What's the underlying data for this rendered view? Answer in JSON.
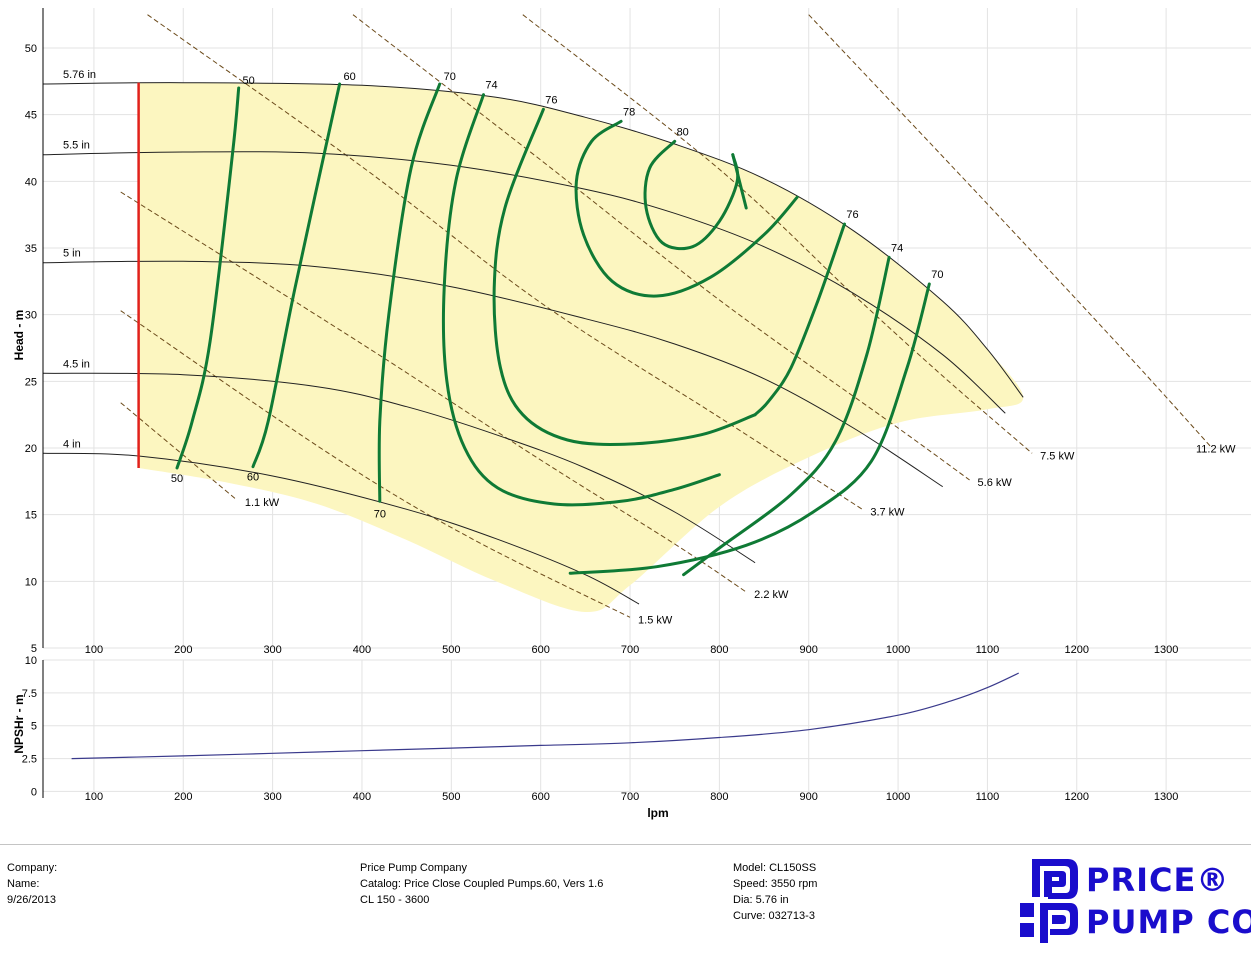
{
  "colors": {
    "fill": "#fcf6c0",
    "efficiency": "#0f7a35",
    "power": "#6b4a1a",
    "diameter": "#222222",
    "min_flow": "#e1211b",
    "npsh": "#3a3a8c",
    "logo": "#1a0dcc"
  },
  "chart_data": [
    {
      "type": "line",
      "name": "head",
      "ylabel": "Head - m",
      "x_ticks": [
        100,
        200,
        300,
        400,
        500,
        600,
        700,
        800,
        900,
        1000,
        1100,
        1200,
        1300
      ],
      "y_ticks": [
        5,
        10,
        15,
        20,
        25,
        30,
        35,
        40,
        45,
        50
      ],
      "xlim": [
        43,
        1395
      ],
      "ylim": [
        5,
        53
      ],
      "grid": true,
      "diameter_curves": [
        {
          "label": "5.76 in",
          "points": [
            [
              43,
              47.3
            ],
            [
              200,
              47.4
            ],
            [
              400,
              47.2
            ],
            [
              550,
              46.3
            ],
            [
              650,
              44.8
            ],
            [
              750,
              42.8
            ],
            [
              850,
              40.2
            ],
            [
              950,
              36.3
            ],
            [
              1050,
              31
            ],
            [
              1100,
              27.4
            ],
            [
              1140,
              23.8
            ]
          ]
        },
        {
          "label": "5.5 in",
          "points": [
            [
              43,
              42
            ],
            [
              200,
              42.2
            ],
            [
              350,
              42.1
            ],
            [
              500,
              41.2
            ],
            [
              650,
              39.4
            ],
            [
              750,
              37.6
            ],
            [
              850,
              35.1
            ],
            [
              950,
              31.6
            ],
            [
              1050,
              27
            ],
            [
              1120,
              22.6
            ]
          ]
        },
        {
          "label": "5 in",
          "points": [
            [
              43,
              33.9
            ],
            [
              200,
              34
            ],
            [
              350,
              33.6
            ],
            [
              500,
              32.1
            ],
            [
              650,
              29.7
            ],
            [
              750,
              27.8
            ],
            [
              850,
              25.2
            ],
            [
              950,
              21.5
            ],
            [
              1050,
              17.1
            ]
          ]
        },
        {
          "label": "4.5 in",
          "points": [
            [
              43,
              25.6
            ],
            [
              200,
              25.5
            ],
            [
              350,
              24.6
            ],
            [
              450,
              23.1
            ],
            [
              550,
              21
            ],
            [
              650,
              18.5
            ],
            [
              750,
              15.2
            ],
            [
              840,
              11.4
            ]
          ]
        },
        {
          "label": "4 in",
          "points": [
            [
              43,
              19.6
            ],
            [
              150,
              19.4
            ],
            [
              300,
              17.9
            ],
            [
              450,
              15.4
            ],
            [
              550,
              13.2
            ],
            [
              650,
              10.5
            ],
            [
              710,
              8.3
            ]
          ]
        }
      ],
      "efficiency_contours": [
        {
          "label": "50",
          "points": [
            [
              193,
              18.5
            ],
            [
              210,
              22
            ],
            [
              230,
              28
            ],
            [
              255,
              42
            ],
            [
              262,
              47
            ]
          ]
        },
        {
          "label": "60",
          "points": [
            [
              278,
              18.6
            ],
            [
              295,
              22
            ],
            [
              325,
              32
            ],
            [
              375,
              47.3
            ]
          ]
        },
        {
          "label": "70",
          "points": [
            [
              420,
              16
            ],
            [
              420,
              22
            ],
            [
              430,
              30
            ],
            [
              455,
              41
            ],
            [
              487,
              47.3
            ]
          ]
        },
        {
          "label": "74",
          "points": [
            [
              536,
              46.5
            ],
            [
              505,
              40
            ],
            [
              492,
              32
            ],
            [
              495,
              25
            ],
            [
              515,
              20
            ],
            [
              552,
              17
            ],
            [
              615,
              15.8
            ],
            [
              690,
              16
            ],
            [
              750,
              16.9
            ],
            [
              800,
              18
            ]
          ]
        },
        {
          "label": "76",
          "points": [
            [
              603,
              45.4
            ],
            [
              560,
              38
            ],
            [
              548,
              32
            ],
            [
              555,
              26
            ],
            [
              580,
              22.5
            ],
            [
              630,
              20.6
            ],
            [
              700,
              20.3
            ],
            [
              780,
              21
            ],
            [
              840,
              22.5
            ]
          ]
        },
        {
          "label": "78",
          "points": [
            [
              690,
              44.5
            ],
            [
              657,
              43
            ],
            [
              640,
              40
            ],
            [
              648,
              36
            ],
            [
              680,
              32.5
            ],
            [
              730,
              31.4
            ],
            [
              790,
              32.8
            ],
            [
              850,
              36
            ],
            [
              887,
              38.8
            ]
          ]
        },
        {
          "label": "80",
          "points": [
            [
              750,
              43
            ],
            [
              722,
              41
            ],
            [
              718,
              38
            ],
            [
              736,
              35.4
            ],
            [
              770,
              35.1
            ],
            [
              800,
              37
            ],
            [
              820,
              40
            ],
            [
              815,
              42
            ]
          ]
        },
        {
          "label": "80",
          "points": [
            [
              815,
              42
            ],
            [
              830,
              38
            ]
          ]
        },
        {
          "label": "76",
          "points": [
            [
              940,
              36.8
            ],
            [
              910,
              31
            ],
            [
              880,
              26
            ],
            [
              855,
              23.5
            ],
            [
              840,
              22.5
            ]
          ]
        },
        {
          "label": "74",
          "points": [
            [
              990,
              34.3
            ],
            [
              965,
              27
            ],
            [
              930,
              20.5
            ],
            [
              880,
              16.5
            ],
            [
              800,
              12.5
            ],
            [
              760,
              10.5
            ]
          ]
        },
        {
          "label": "70",
          "points": [
            [
              1035,
              32.3
            ],
            [
              1010,
              26
            ],
            [
              970,
              19
            ],
            [
              905,
              15.2
            ],
            [
              830,
              12.7
            ],
            [
              730,
              11.1
            ],
            [
              633,
              10.6
            ]
          ]
        }
      ],
      "power_lines": [
        {
          "label": "1.1 kW",
          "points": [
            [
              130,
              23.4
            ],
            [
              260,
              16.1
            ]
          ]
        },
        {
          "label": "1.5 kW",
          "points": [
            [
              130,
              30.3
            ],
            [
              365,
              19.5
            ],
            [
              520,
              13.3
            ],
            [
              700,
              7.3
            ]
          ]
        },
        {
          "label": "2.2 kW",
          "points": [
            [
              130,
              39.2
            ],
            [
              400,
              27.8
            ],
            [
              600,
              19.1
            ],
            [
              750,
              12.8
            ],
            [
              830,
              9.2
            ]
          ]
        },
        {
          "label": "3.7 kW",
          "points": [
            [
              160,
              52.5
            ],
            [
              400,
              41.1
            ],
            [
              600,
              30.9
            ],
            [
              800,
              22.3
            ],
            [
              960,
              15.4
            ]
          ]
        },
        {
          "label": "5.6 kW",
          "points": [
            [
              390,
              52.5
            ],
            [
              600,
              41.6
            ],
            [
              800,
              31.1
            ],
            [
              1000,
              21.5
            ],
            [
              1080,
              17.6
            ]
          ]
        },
        {
          "label": "7.5 kW",
          "points": [
            [
              580,
              52.5
            ],
            [
              800,
              40.9
            ],
            [
              950,
              31.5
            ],
            [
              1050,
              25.4
            ],
            [
              1150,
              19.6
            ]
          ]
        },
        {
          "label": "11.2 kW",
          "points": [
            [
              900,
              52.5
            ],
            [
              1100,
              38.3
            ],
            [
              1250,
              27.5
            ],
            [
              1350,
              20.1
            ]
          ]
        }
      ],
      "operating_region": [
        [
          150,
          47.4
        ],
        [
          200,
          47.4
        ],
        [
          400,
          47.2
        ],
        [
          550,
          46.3
        ],
        [
          650,
          44.8
        ],
        [
          750,
          42.8
        ],
        [
          850,
          40.2
        ],
        [
          950,
          36.3
        ],
        [
          1050,
          31
        ],
        [
          1100,
          27.4
        ],
        [
          1140,
          23.8
        ],
        [
          1100,
          22.9
        ],
        [
          1000,
          21.9
        ],
        [
          900,
          19.3
        ],
        [
          800,
          15.6
        ],
        [
          700,
          9.7
        ],
        [
          650,
          7.7
        ],
        [
          550,
          10
        ],
        [
          450,
          13.1
        ],
        [
          350,
          15.8
        ],
        [
          250,
          17.4
        ],
        [
          150,
          18.5
        ]
      ],
      "min_flow_line": {
        "x": 150,
        "y_from": 18.5,
        "y_to": 47.4
      }
    },
    {
      "type": "line",
      "name": "npshr",
      "xlabel": "lpm",
      "ylabel": "NPSHr - m",
      "x_ticks": [
        100,
        200,
        300,
        400,
        500,
        600,
        700,
        800,
        900,
        1000,
        1100,
        1200,
        1300
      ],
      "y_ticks": [
        0,
        2.5,
        5,
        7.5,
        10
      ],
      "y_tick_labels": [
        "0",
        "2.5",
        "5",
        "7.5",
        "10"
      ],
      "xlim": [
        43,
        1395
      ],
      "ylim": [
        -0.5,
        10
      ],
      "grid": true,
      "series": [
        {
          "points": [
            [
              75,
              2.5
            ],
            [
              200,
              2.7
            ],
            [
              300,
              2.9
            ],
            [
              400,
              3.1
            ],
            [
              500,
              3.3
            ],
            [
              600,
              3.5
            ],
            [
              700,
              3.7
            ],
            [
              800,
              4.1
            ],
            [
              900,
              4.7
            ],
            [
              1000,
              5.8
            ],
            [
              1060,
              6.9
            ],
            [
              1100,
              7.9
            ],
            [
              1135,
              9
            ]
          ]
        }
      ]
    }
  ],
  "footer": {
    "col1": [
      "Company:",
      "Name:",
      "9/26/2013"
    ],
    "col2": [
      "Price Pump Company",
      "Catalog: Price Close Coupled Pumps.60, Vers 1.6",
      "CL 150 - 3600"
    ],
    "col3": [
      "Model: CL150SS",
      "Speed: 3550 rpm",
      "Dia: 5.76 in",
      "Curve: 032713-3"
    ],
    "logo": {
      "line1": "PRICE®",
      "line2": "PUMP CO."
    }
  }
}
